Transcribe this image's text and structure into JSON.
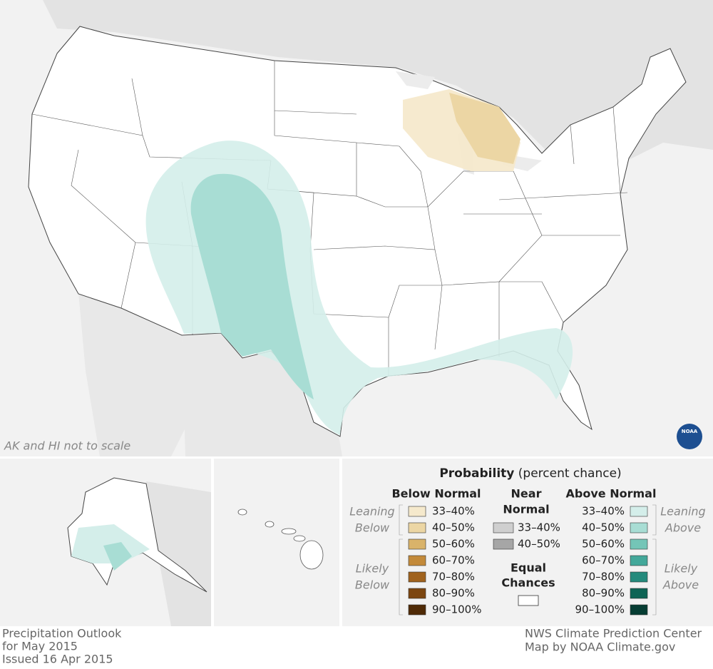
{
  "map": {
    "note": "AK and HI not to scale",
    "logo": "NOAA"
  },
  "legend": {
    "title": "Probability",
    "subtitle": "(percent chance)",
    "below": {
      "heading": "Below Normal",
      "leaning": [
        "Leaning",
        "Below"
      ],
      "likely": [
        "Likely",
        "Below"
      ],
      "items": [
        {
          "label": "33–40%",
          "color": "#f5e9cc"
        },
        {
          "label": "40–50%",
          "color": "#ecd6a4"
        },
        {
          "label": "50–60%",
          "color": "#d9b36a"
        },
        {
          "label": "60–70%",
          "color": "#c38a3a"
        },
        {
          "label": "70–80%",
          "color": "#a0621d"
        },
        {
          "label": "80–90%",
          "color": "#7c4610"
        },
        {
          "label": "90–100%",
          "color": "#4f2a06"
        }
      ]
    },
    "near": {
      "heading": [
        "Near",
        "Normal"
      ],
      "items": [
        {
          "label": "33–40%",
          "color": "#cfcfcf"
        },
        {
          "label": "40–50%",
          "color": "#a6a6a6"
        }
      ]
    },
    "equal": {
      "heading": [
        "Equal",
        "Chances"
      ],
      "color": "#ffffff"
    },
    "above": {
      "heading": "Above Normal",
      "leaning": [
        "Leaning",
        "Above"
      ],
      "likely": [
        "Likely",
        "Above"
      ],
      "items": [
        {
          "label": "33–40%",
          "color": "#d4eeea"
        },
        {
          "label": "40–50%",
          "color": "#a8ddd4"
        },
        {
          "label": "50–60%",
          "color": "#74c5b7"
        },
        {
          "label": "60–70%",
          "color": "#43a89a"
        },
        {
          "label": "70–80%",
          "color": "#248a7c"
        },
        {
          "label": "80–90%",
          "color": "#0e6455"
        },
        {
          "label": "90–100%",
          "color": "#063d33"
        }
      ]
    }
  },
  "footer": {
    "left": [
      "Precipitation Outlook",
      "for May 2015",
      "Issued 16 Apr 2015"
    ],
    "right": [
      "NWS Climate Prediction Center",
      "Map by NOAA Climate.gov"
    ]
  }
}
